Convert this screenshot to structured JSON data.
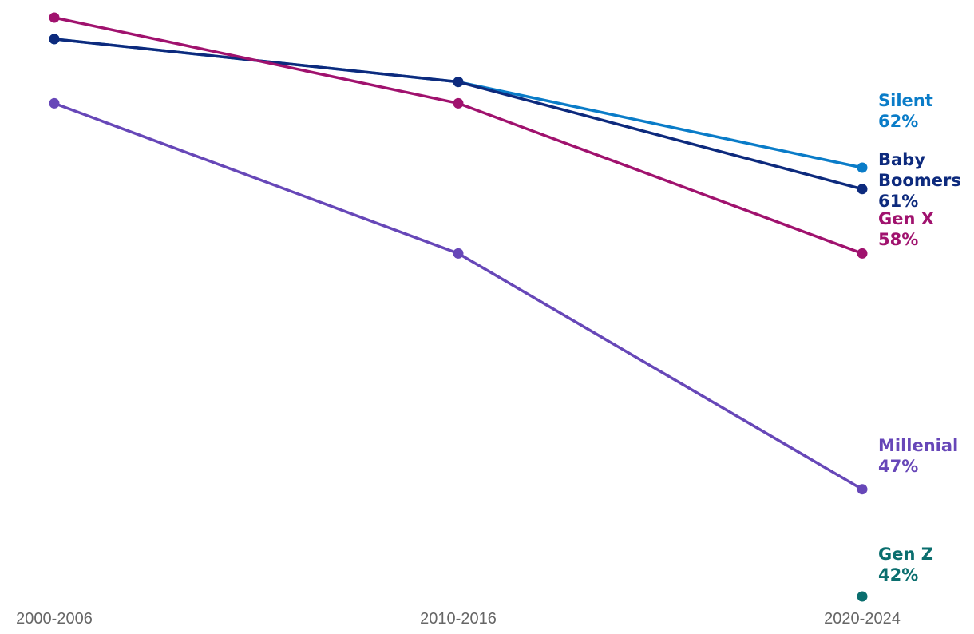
{
  "chart_data": {
    "type": "line",
    "title": "",
    "xlabel": "",
    "ylabel": "",
    "x": [
      "2000-2006",
      "2010-2016",
      "2020-2024"
    ],
    "ylim": [
      40,
      70
    ],
    "grid": false,
    "legend": "direct labels at right end of lines",
    "series": [
      {
        "name": "Silent",
        "color": "#0a7cc8",
        "values": [
          68,
          66,
          null
        ],
        "end_value": 62,
        "end_label": "62%"
      },
      {
        "name": "Baby Boomers",
        "color": "#0d2a7d",
        "values": [
          68,
          66,
          61
        ],
        "end_label": "61%"
      },
      {
        "name": "Gen X",
        "color": "#a0126e",
        "values": [
          69,
          65,
          58
        ],
        "end_label": "58%"
      },
      {
        "name": "Millenial",
        "color": "#6747b8",
        "values": [
          65,
          58,
          47
        ],
        "end_label": "47%"
      },
      {
        "name": "Gen Z",
        "color": "#0a6e6e",
        "values": [
          null,
          null,
          42
        ],
        "end_label": "42%"
      }
    ]
  }
}
